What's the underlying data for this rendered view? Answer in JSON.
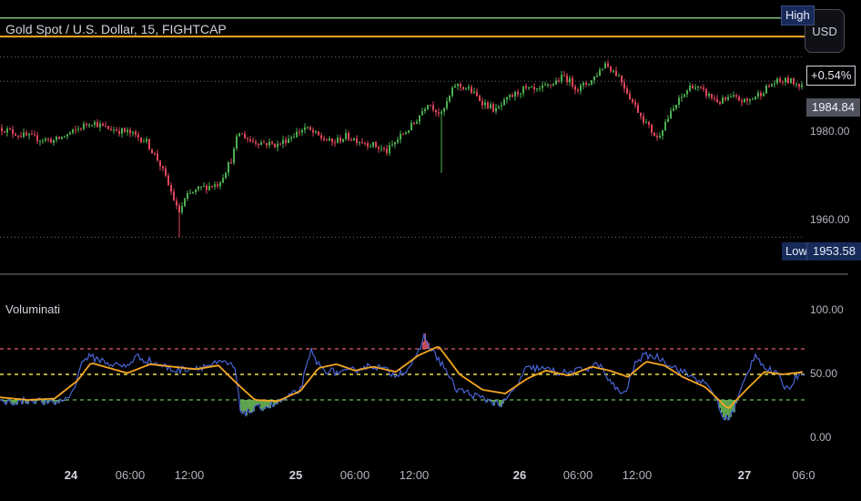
{
  "header": {
    "symbol_title": "Gold Spot / U.S. Dollar, 15, FIGHTCAP",
    "currency_label": "USD"
  },
  "indicator": {
    "title": "Voluminati"
  },
  "badges": {
    "high_label": "High",
    "low_label": "Low",
    "low_value": "1953.58",
    "change_pct": "+0.54%",
    "last_price": "1984.84"
  },
  "colors": {
    "background": "#000000",
    "candle_up": "#4caf50",
    "candle_down": "#e0455a",
    "high_line": "#7bc07f",
    "orange_line": "#f5a623",
    "oscillator": "#4a63d6",
    "signal": "#f5a623",
    "overbought": "#e35b6b",
    "midline": "#e8e04a",
    "oversold": "#6fbf5c"
  },
  "chart_data": [
    {
      "type": "candlestick",
      "title": "Gold Spot / U.S. Dollar, 15, FIGHTCAP",
      "y_ticks": [
        "1980.00",
        "1960.00"
      ],
      "ylim": [
        1949,
        2007
      ],
      "x_ticks": [
        "24",
        "06:00",
        "12:00",
        "25",
        "06:00",
        "12:00",
        "26",
        "06:00",
        "12:00",
        "27",
        "06:0"
      ],
      "high_line": 2004.5,
      "orange_line": 2000.2,
      "low": 1953.58,
      "last_price": 1984.84,
      "change_pct": "+0.54%",
      "path_anchors": [
        [
          0,
          1979
        ],
        [
          20,
          1977.5
        ],
        [
          40,
          1976.5
        ],
        [
          60,
          1976
        ],
        [
          80,
          1978
        ],
        [
          100,
          1980.5
        ],
        [
          115,
          1979
        ],
        [
          140,
          1978
        ],
        [
          160,
          1976
        ],
        [
          175,
          1971
        ],
        [
          190,
          1963
        ],
        [
          196,
          1959
        ],
        [
          205,
          1963
        ],
        [
          220,
          1965
        ],
        [
          240,
          1966
        ],
        [
          255,
          1972
        ],
        [
          262,
          1978
        ],
        [
          275,
          1976
        ],
        [
          290,
          1975.5
        ],
        [
          305,
          1975
        ],
        [
          320,
          1977
        ],
        [
          335,
          1979
        ],
        [
          350,
          1977
        ],
        [
          365,
          1975.5
        ],
        [
          380,
          1977
        ],
        [
          395,
          1976
        ],
        [
          410,
          1975
        ],
        [
          425,
          1973.5
        ],
        [
          440,
          1977
        ],
        [
          455,
          1980
        ],
        [
          470,
          1985
        ],
        [
          485,
          1982
        ],
        [
          500,
          1989
        ],
        [
          515,
          1988
        ],
        [
          530,
          1985
        ],
        [
          545,
          1983
        ],
        [
          560,
          1986
        ],
        [
          575,
          1988
        ],
        [
          590,
          1987.5
        ],
        [
          605,
          1989
        ],
        [
          620,
          1991
        ],
        [
          635,
          1988
        ],
        [
          650,
          1990
        ],
        [
          665,
          1994
        ],
        [
          680,
          1991
        ],
        [
          695,
          1985
        ],
        [
          710,
          1980
        ],
        [
          722,
          1976.5
        ],
        [
          730,
          1980
        ],
        [
          745,
          1985
        ],
        [
          760,
          1989
        ],
        [
          775,
          1987
        ],
        [
          790,
          1985
        ],
        [
          805,
          1986
        ],
        [
          820,
          1985
        ],
        [
          835,
          1987
        ],
        [
          850,
          1989.5
        ],
        [
          865,
          1990
        ],
        [
          880,
          1989
        ],
        [
          884,
          1989.5
        ]
      ],
      "spikes": [
        [
          484,
          1968.5
        ],
        [
          196,
          1953.58
        ]
      ]
    },
    {
      "type": "line",
      "title": "Voluminati",
      "y_ticks": [
        "100.00",
        "50.00",
        "0.00"
      ],
      "ylim": [
        0,
        100
      ],
      "levels": {
        "overbought": 70,
        "mid": 50,
        "oversold": 30
      },
      "series": [
        {
          "values_anchors": [
            [
              0,
              28
            ],
            [
              25,
              29
            ],
            [
              40,
              30
            ],
            [
              55,
              27
            ],
            [
              70,
              30
            ],
            [
              80,
              36
            ],
            [
              88,
              56
            ],
            [
              95,
              64
            ],
            [
              108,
              62
            ],
            [
              122,
              58
            ],
            [
              138,
              56
            ],
            [
              150,
              64
            ],
            [
              162,
              61
            ],
            [
              178,
              57
            ],
            [
              192,
              53
            ],
            [
              208,
              55
            ],
            [
              222,
              56
            ],
            [
              236,
              58
            ],
            [
              248,
              59
            ],
            [
              258,
              55
            ],
            [
              264,
              22
            ],
            [
              272,
              20
            ],
            [
              285,
              24
            ],
            [
              300,
              26
            ],
            [
              315,
              31
            ],
            [
              330,
              38
            ],
            [
              342,
              68
            ],
            [
              352,
              55
            ],
            [
              366,
              52
            ],
            [
              380,
              51
            ],
            [
              395,
              55
            ],
            [
              410,
              57
            ],
            [
              422,
              54
            ],
            [
              432,
              50
            ],
            [
              446,
              53
            ],
            [
              458,
              63
            ],
            [
              466,
              80
            ],
            [
              476,
              67
            ],
            [
              488,
              56
            ],
            [
              500,
              39
            ],
            [
              512,
              36
            ],
            [
              526,
              32
            ],
            [
              540,
              29
            ],
            [
              552,
              26
            ],
            [
              565,
              38
            ],
            [
              578,
              54
            ],
            [
              590,
              55
            ],
            [
              605,
              53
            ],
            [
              620,
              51
            ],
            [
              632,
              52
            ],
            [
              645,
              55
            ],
            [
              658,
              58
            ],
            [
              672,
              42
            ],
            [
              686,
              34
            ],
            [
              700,
              62
            ],
            [
              712,
              65
            ],
            [
              725,
              63
            ],
            [
              740,
              56
            ],
            [
              755,
              50
            ],
            [
              770,
              45
            ],
            [
              785,
              35
            ],
            [
              795,
              14
            ],
            [
              805,
              20
            ],
            [
              818,
              45
            ],
            [
              830,
              67
            ],
            [
              840,
              55
            ],
            [
              852,
              51
            ],
            [
              865,
              38
            ],
            [
              880,
              53
            ],
            [
              884,
              52
            ]
          ]
        },
        {
          "values_anchors": [
            [
              0,
              32
            ],
            [
              30,
              30
            ],
            [
              60,
              31
            ],
            [
              85,
              45
            ],
            [
              100,
              59
            ],
            [
              120,
              55
            ],
            [
              140,
              51
            ],
            [
              165,
              58
            ],
            [
              190,
              56
            ],
            [
              215,
              54
            ],
            [
              240,
              57
            ],
            [
              260,
              43
            ],
            [
              280,
              30
            ],
            [
              305,
              29
            ],
            [
              330,
              37
            ],
            [
              350,
              55
            ],
            [
              370,
              58
            ],
            [
              390,
              53
            ],
            [
              410,
              56
            ],
            [
              435,
              52
            ],
            [
              460,
              65
            ],
            [
              482,
              72
            ],
            [
              505,
              50
            ],
            [
              530,
              38
            ],
            [
              555,
              35
            ],
            [
              580,
              47
            ],
            [
              600,
              53
            ],
            [
              625,
              49
            ],
            [
              650,
              56
            ],
            [
              670,
              53
            ],
            [
              690,
              48
            ],
            [
              710,
              60
            ],
            [
              730,
              57
            ],
            [
              750,
              48
            ],
            [
              775,
              40
            ],
            [
              800,
              23
            ],
            [
              820,
              38
            ],
            [
              840,
              52
            ],
            [
              860,
              50
            ],
            [
              884,
              52
            ]
          ]
        }
      ]
    }
  ]
}
